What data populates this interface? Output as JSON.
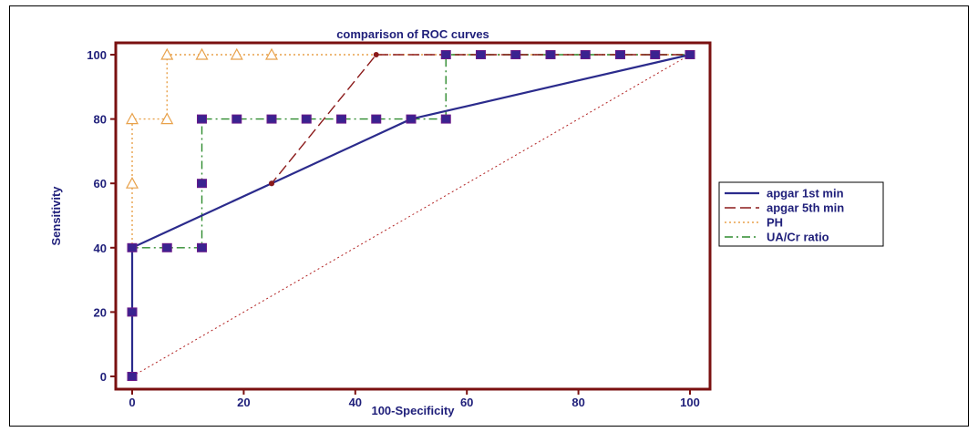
{
  "chart_data": {
    "type": "line",
    "title": "comparison of ROC curves",
    "xlabel": "100-Specificity",
    "ylabel": "Sensitivity",
    "xlim": [
      0,
      100
    ],
    "ylim": [
      0,
      100
    ],
    "xticks": [
      "0",
      "20",
      "40",
      "60",
      "80",
      "100"
    ],
    "yticks": [
      "0",
      "20",
      "40",
      "60",
      "80",
      "100"
    ],
    "legend_position": "right",
    "colors": {
      "frame": "#7a1010",
      "reference": "#b22222",
      "text": "#1f1f7a"
    },
    "series": [
      {
        "name": "apgar 1st min",
        "color": "#2b2b8c",
        "dash": "solid",
        "marker": "dot",
        "points": [
          [
            0,
            0
          ],
          [
            0,
            40
          ],
          [
            25,
            60
          ],
          [
            50,
            80
          ],
          [
            100,
            100
          ]
        ]
      },
      {
        "name": "apgar 5th min",
        "color": "#8b1a1a",
        "dash": "dashed",
        "marker": "dot",
        "points": [
          [
            0,
            0
          ],
          [
            0,
            40
          ],
          [
            25,
            60
          ],
          [
            43.75,
            100
          ],
          [
            100,
            100
          ]
        ]
      },
      {
        "name": "PH",
        "color": "#e8a14a",
        "dash": "dotted",
        "marker": "triangle",
        "points": [
          [
            0,
            0
          ],
          [
            0,
            60
          ],
          [
            0,
            80
          ],
          [
            6.25,
            80
          ],
          [
            6.25,
            100
          ],
          [
            12.5,
            100
          ],
          [
            18.75,
            100
          ],
          [
            25,
            100
          ],
          [
            100,
            100
          ]
        ]
      },
      {
        "name": "UA/Cr ratio",
        "color": "#2e8b2e",
        "dash": "dashdot",
        "marker": "square",
        "points": [
          [
            0,
            0
          ],
          [
            0,
            20
          ],
          [
            0,
            40
          ],
          [
            6.25,
            40
          ],
          [
            12.5,
            40
          ],
          [
            12.5,
            60
          ],
          [
            12.5,
            80
          ],
          [
            18.75,
            80
          ],
          [
            25,
            80
          ],
          [
            31.25,
            80
          ],
          [
            37.5,
            80
          ],
          [
            43.75,
            80
          ],
          [
            50,
            80
          ],
          [
            56.25,
            80
          ],
          [
            56.25,
            100
          ],
          [
            62.5,
            100
          ],
          [
            68.75,
            100
          ],
          [
            75,
            100
          ],
          [
            81.25,
            100
          ],
          [
            87.5,
            100
          ],
          [
            93.75,
            100
          ],
          [
            100,
            100
          ]
        ]
      }
    ]
  }
}
